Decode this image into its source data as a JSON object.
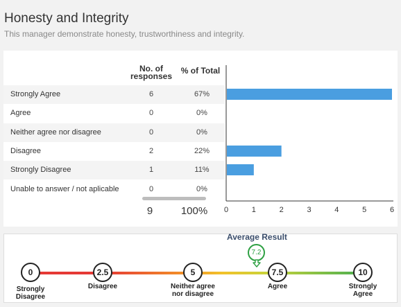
{
  "header": {
    "title": "Honesty and Integrity",
    "subtitle": "This manager demonstrate honesty, trustworthiness and integrity."
  },
  "table": {
    "col_responses": "No. of responses",
    "col_percent": "% of Total",
    "rows": [
      {
        "label": "Strongly Agree",
        "count": "6",
        "percent": "67%"
      },
      {
        "label": "Agree",
        "count": "0",
        "percent": "0%"
      },
      {
        "label": "Neither agree nor disagree",
        "count": "0",
        "percent": "0%"
      },
      {
        "label": "Disagree",
        "count": "2",
        "percent": "22%"
      },
      {
        "label": "Strongly Disagree",
        "count": "1",
        "percent": "11%"
      },
      {
        "label": "Unable to answer / not aplicable",
        "count": "0",
        "percent": "0%"
      }
    ],
    "total_count": "9",
    "total_percent": "100%"
  },
  "chart_data": {
    "type": "bar",
    "orientation": "horizontal",
    "categories": [
      "Strongly Agree",
      "Agree",
      "Neither agree nor disagree",
      "Disagree",
      "Strongly Disagree",
      "Unable to answer / not aplicable"
    ],
    "values": [
      6,
      0,
      0,
      2,
      1,
      0
    ],
    "xlim": [
      0,
      6
    ],
    "ticks": [
      "0",
      "1",
      "2",
      "3",
      "4",
      "5",
      "6"
    ],
    "bar_color": "#4a9ee0",
    "grid": false
  },
  "average": {
    "title": "Average Result",
    "value": "7.2",
    "marker_color": "#2ea043"
  },
  "scale": [
    {
      "value": "0",
      "label": "Strongly Disagree"
    },
    {
      "value": "2.5",
      "label": "Disagree"
    },
    {
      "value": "5",
      "label": "Neither agree nor disagree"
    },
    {
      "value": "7.5",
      "label": "Agree"
    },
    {
      "value": "10",
      "label": "Strongly Agree"
    }
  ]
}
